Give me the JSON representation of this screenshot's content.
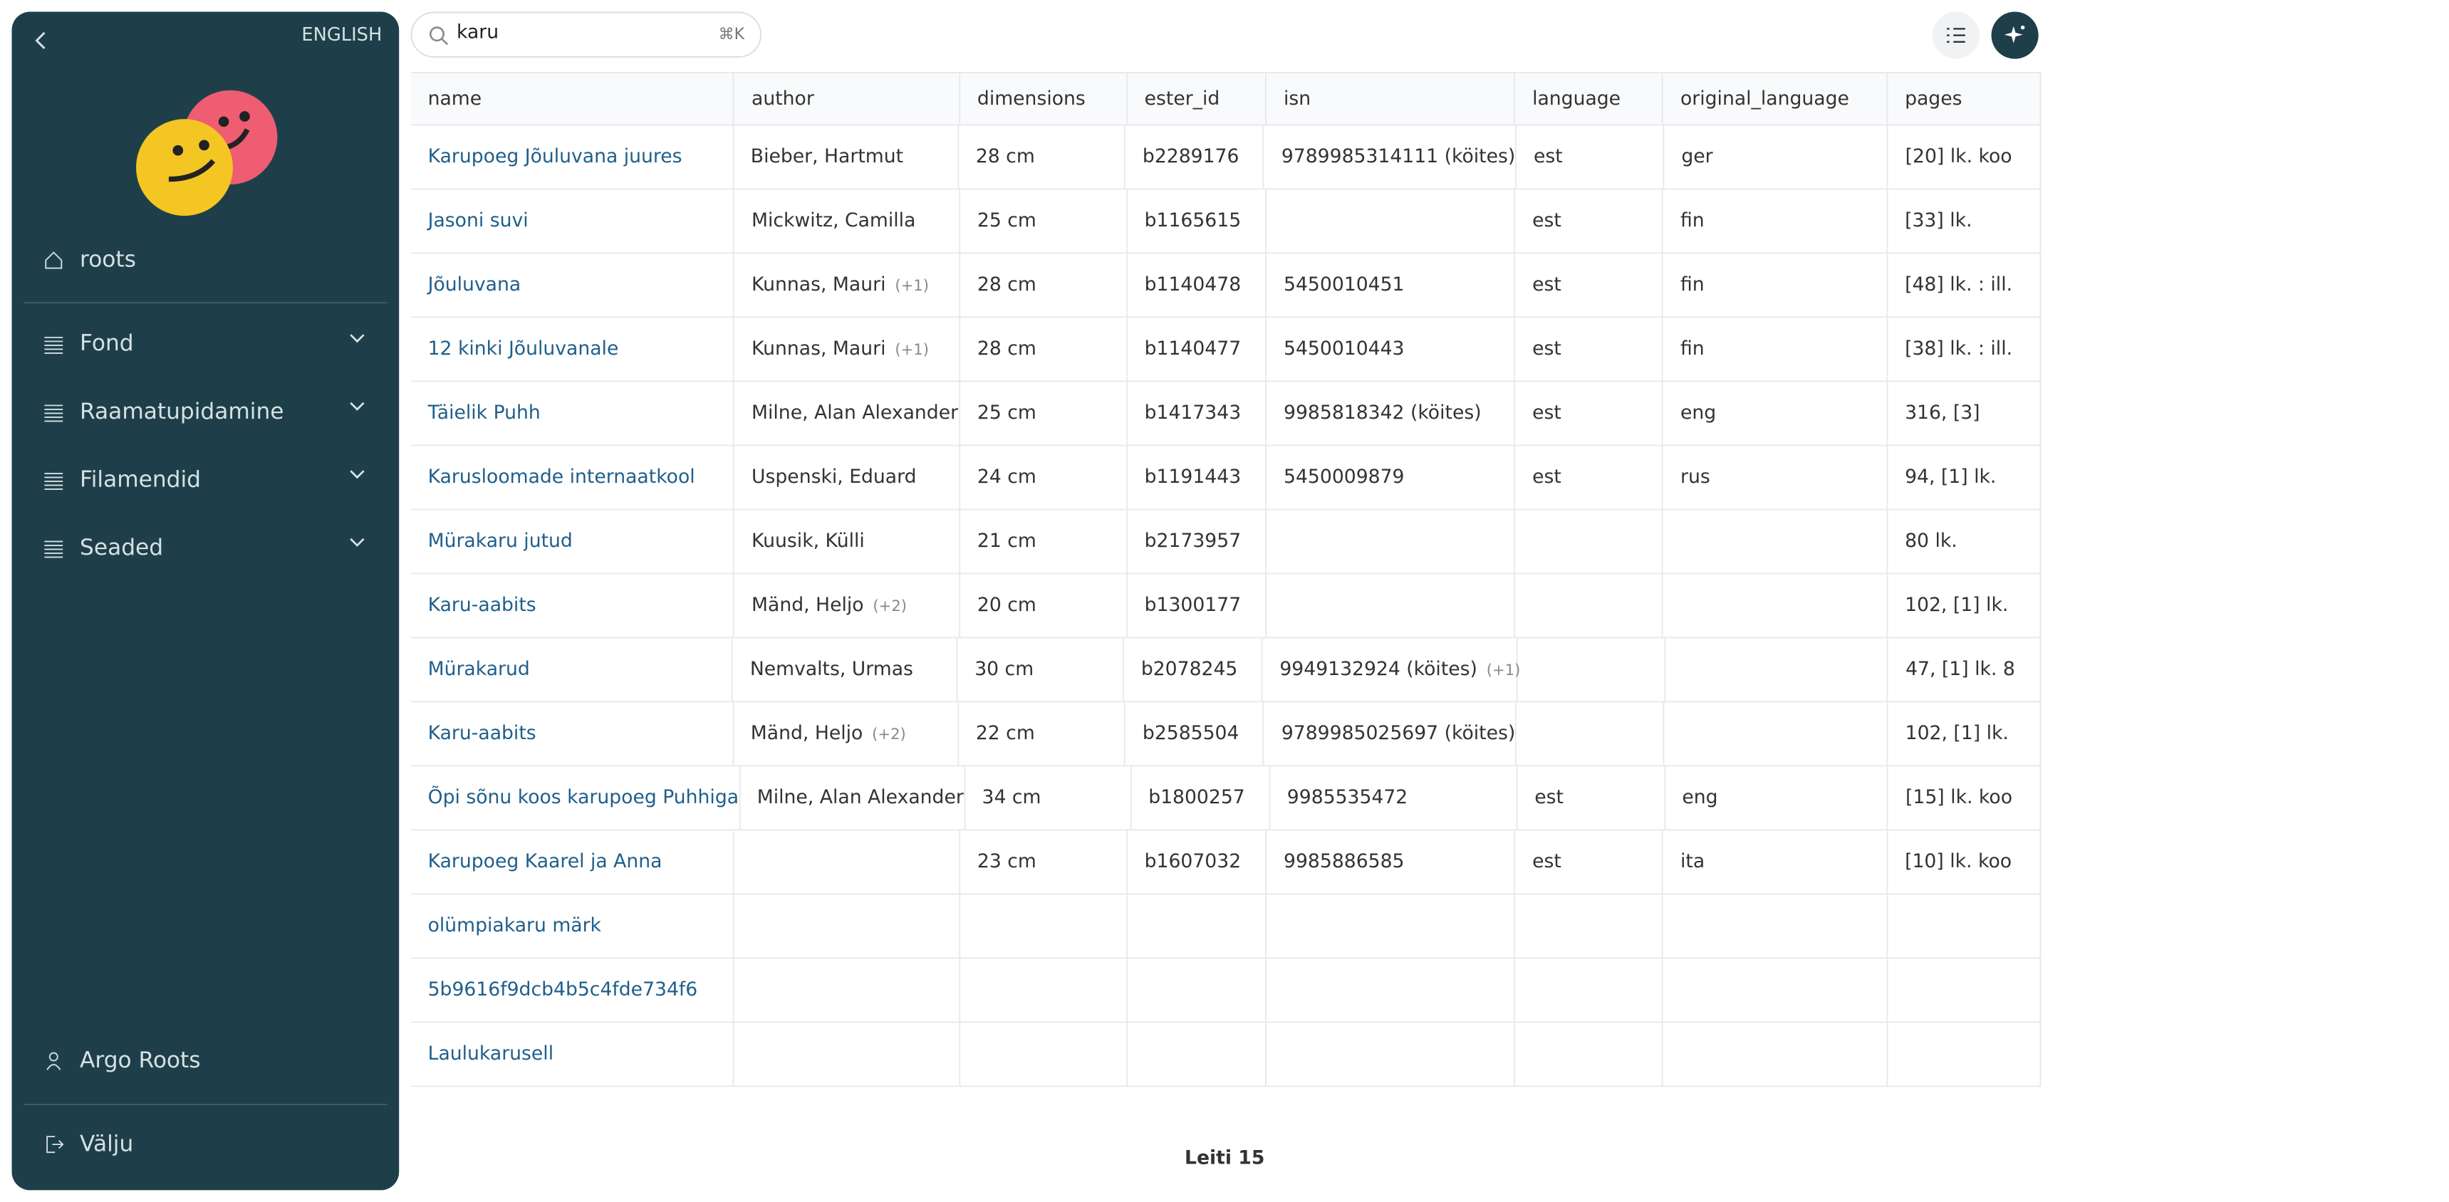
{
  "sidebar": {
    "language": "ENGLISH",
    "home": "roots",
    "menu": [
      "Fond",
      "Raamatupidamine",
      "Filamendid",
      "Seaded"
    ],
    "user": "Argo Roots",
    "logout": "Välju"
  },
  "search": {
    "query": "karu",
    "shortcut": "⌘K"
  },
  "table": {
    "columns": [
      "name",
      "author",
      "dimensions",
      "ester_id",
      "isn",
      "language",
      "original_language",
      "pages"
    ],
    "rows": [
      [
        "Karupoeg Jõuluvana juures",
        "Bieber, Hartmut",
        "28 cm",
        "b2289176",
        "9789985314111 (köites)",
        "est",
        "ger",
        "[20] lk. koo"
      ],
      [
        "Jasoni suvi",
        "Mickwitz, Camilla",
        "25 cm",
        "b1165615",
        null,
        "est",
        "fin",
        "[33] lk."
      ],
      [
        "Jõuluvana",
        {
          "text": "Kunnas, Mauri",
          "more": "(+1)"
        },
        "28 cm",
        "b1140478",
        "5450010451",
        "est",
        "fin",
        "[48] lk. : ill."
      ],
      [
        "12 kinki Jõuluvanale",
        {
          "text": "Kunnas, Mauri",
          "more": "(+1)"
        },
        "28 cm",
        "b1140477",
        "5450010443",
        "est",
        "fin",
        "[38] lk. : ill."
      ],
      [
        "Täielik Puhh",
        "Milne, Alan Alexander",
        "25 cm",
        "b1417343",
        "9985818342 (köites)",
        "est",
        "eng",
        "316, [3]"
      ],
      [
        "Karusloomade internaatkool",
        "Uspenski, Eduard",
        "24 cm",
        "b1191443",
        "5450009879",
        "est",
        "rus",
        "94, [1] lk."
      ],
      [
        "Mürakaru jutud",
        "Kuusik, Külli",
        "21 cm",
        "b2173957",
        null,
        null,
        null,
        "80 lk."
      ],
      [
        "Karu-aabits",
        {
          "text": "Mänd, Heljo",
          "more": "(+2)"
        },
        "20 cm",
        "b1300177",
        null,
        null,
        null,
        "102, [1] lk."
      ],
      [
        "Mürakarud",
        "Nemvalts, Urmas",
        "30 cm",
        "b2078245",
        {
          "text": "9949132924 (köites)",
          "more": "(+1)"
        },
        null,
        null,
        "47, [1] lk. 8"
      ],
      [
        "Karu-aabits",
        {
          "text": "Mänd, Heljo",
          "more": "(+2)"
        },
        "22 cm",
        "b2585504",
        "9789985025697 (köites)",
        null,
        null,
        "102, [1] lk."
      ],
      [
        "Õpi sõnu koos karupoeg Puhhiga",
        "Milne, Alan Alexander",
        "34 cm",
        "b1800257",
        "9985535472",
        "est",
        "eng",
        "[15] lk. koo"
      ],
      [
        "Karupoeg Kaarel ja Anna",
        null,
        "23 cm",
        "b1607032",
        "9985886585",
        "est",
        "ita",
        "[10] lk. koo"
      ],
      [
        "olümpiakaru märk",
        null,
        null,
        null,
        null,
        null,
        null,
        null
      ],
      [
        "5b9616f9dcb4b5c4fde734f6",
        null,
        null,
        null,
        null,
        null,
        null,
        null
      ],
      [
        "Laulukarusell",
        null,
        null,
        null,
        null,
        null,
        null,
        null
      ]
    ]
  },
  "footer": "Leiti 15"
}
